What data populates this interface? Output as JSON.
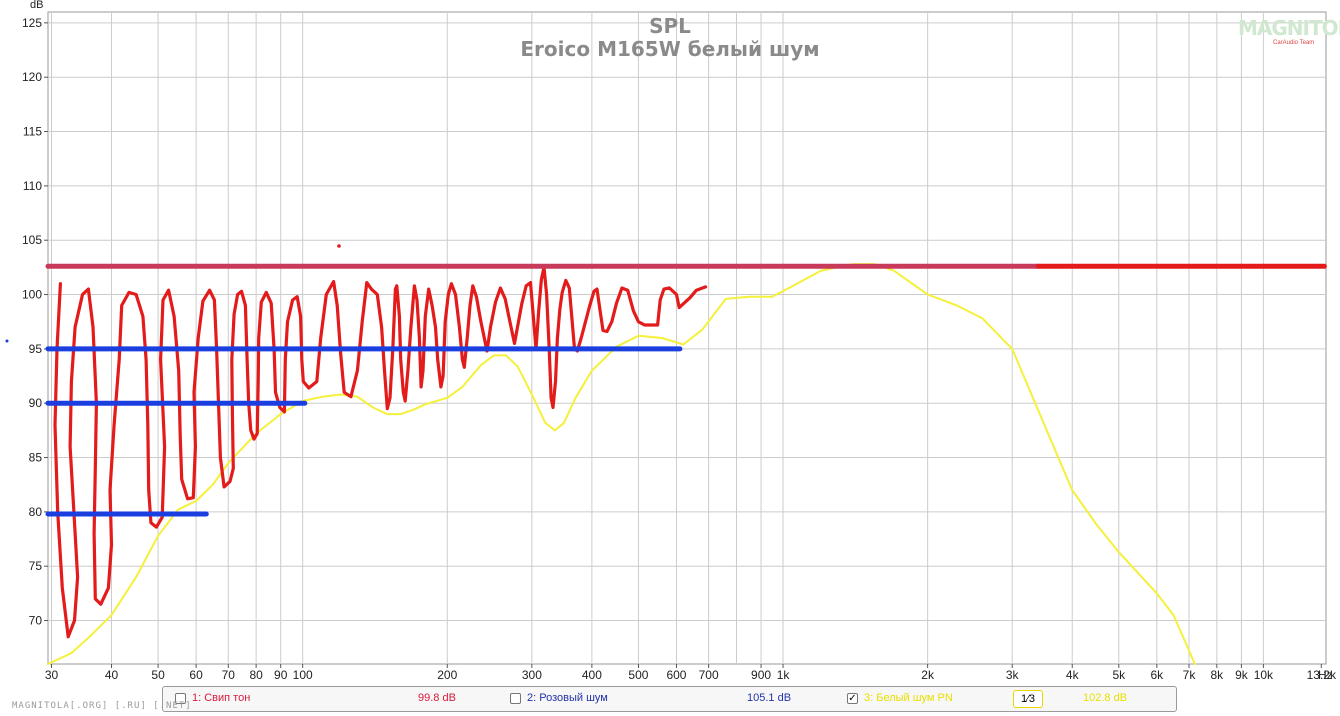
{
  "chart_data": {
    "type": "line",
    "title": "SPL",
    "subtitle": "Eroico M165W белый шум",
    "ylabel": "dB",
    "xlabel": "Hz",
    "xscale": "log",
    "xlim": [
      29.5,
      13500
    ],
    "ylim": [
      66,
      126
    ],
    "y_ticks": [
      70,
      75,
      80,
      85,
      90,
      95,
      100,
      105,
      110,
      115,
      120,
      125
    ],
    "x_ticks": [
      {
        "v": 30,
        "label": "30"
      },
      {
        "v": 40,
        "label": "40"
      },
      {
        "v": 50,
        "label": "50"
      },
      {
        "v": 60,
        "label": "60"
      },
      {
        "v": 70,
        "label": "70"
      },
      {
        "v": 80,
        "label": "80"
      },
      {
        "v": 90,
        "label": "90"
      },
      {
        "v": 100,
        "label": "100"
      },
      {
        "v": 200,
        "label": "200"
      },
      {
        "v": 300,
        "label": "300"
      },
      {
        "v": 400,
        "label": "400"
      },
      {
        "v": 500,
        "label": "500"
      },
      {
        "v": 600,
        "label": "600"
      },
      {
        "v": 700,
        "label": "700"
      },
      {
        "v": 900,
        "label": "900"
      },
      {
        "v": 1000,
        "label": "1k"
      },
      {
        "v": 2000,
        "label": "2k"
      },
      {
        "v": 3000,
        "label": "3k"
      },
      {
        "v": 4000,
        "label": "4k"
      },
      {
        "v": 5000,
        "label": "5k"
      },
      {
        "v": 6000,
        "label": "6k"
      },
      {
        "v": 7000,
        "label": "7k"
      },
      {
        "v": 8000,
        "label": "8k"
      },
      {
        "v": 9000,
        "label": "9k"
      },
      {
        "v": 10000,
        "label": "10k"
      },
      {
        "v": 13200,
        "label": "13.2k"
      }
    ],
    "grid_x": [
      30,
      40,
      50,
      60,
      70,
      80,
      90,
      100,
      200,
      300,
      400,
      500,
      600,
      700,
      800,
      900,
      1000,
      2000,
      3000,
      4000,
      5000,
      6000,
      7000,
      8000,
      9000,
      10000
    ],
    "grid": true,
    "series": [
      {
        "name": "3: Белый шум PN",
        "color": "#f5f03a",
        "points": [
          [
            29.5,
            66
          ],
          [
            33,
            67
          ],
          [
            36,
            68.5
          ],
          [
            40,
            70.5
          ],
          [
            45,
            74
          ],
          [
            50,
            77.8
          ],
          [
            55,
            80.2
          ],
          [
            60,
            81
          ],
          [
            65,
            82.5
          ],
          [
            70,
            84.5
          ],
          [
            80,
            87.2
          ],
          [
            90,
            89
          ],
          [
            100,
            90.2
          ],
          [
            110,
            90.6
          ],
          [
            120,
            90.8
          ],
          [
            130,
            90.6
          ],
          [
            140,
            89.6
          ],
          [
            150,
            89
          ],
          [
            160,
            89
          ],
          [
            170,
            89.4
          ],
          [
            180,
            89.9
          ],
          [
            200,
            90.5
          ],
          [
            215,
            91.5
          ],
          [
            235,
            93.5
          ],
          [
            250,
            94.4
          ],
          [
            265,
            94.4
          ],
          [
            280,
            93.4
          ],
          [
            300,
            90.8
          ],
          [
            320,
            88.2
          ],
          [
            335,
            87.5
          ],
          [
            350,
            88.2
          ],
          [
            370,
            90.5
          ],
          [
            400,
            93
          ],
          [
            450,
            95.2
          ],
          [
            500,
            96.2
          ],
          [
            560,
            96
          ],
          [
            620,
            95.4
          ],
          [
            680,
            96.8
          ],
          [
            760,
            99.6
          ],
          [
            850,
            99.8
          ],
          [
            950,
            99.8
          ],
          [
            1050,
            100.8
          ],
          [
            1200,
            102.2
          ],
          [
            1400,
            102.8
          ],
          [
            1550,
            102.8
          ],
          [
            1700,
            102.2
          ],
          [
            2000,
            100
          ],
          [
            2300,
            99
          ],
          [
            2600,
            97.8
          ],
          [
            3000,
            95
          ],
          [
            3500,
            88
          ],
          [
            4000,
            82
          ],
          [
            4500,
            78.8
          ],
          [
            5000,
            76.3
          ],
          [
            6000,
            72.5
          ],
          [
            6500,
            70.5
          ],
          [
            7200,
            66
          ]
        ]
      },
      {
        "name": "annotation-red-trace",
        "color": "#e31b1b",
        "points": [
          [
            31.3,
            101
          ],
          [
            30.8,
            95
          ],
          [
            30.5,
            88
          ],
          [
            30.9,
            80
          ],
          [
            31.6,
            73
          ],
          [
            32.5,
            68.5
          ],
          [
            33.5,
            70
          ],
          [
            34,
            74
          ],
          [
            33.4,
            80
          ],
          [
            32.8,
            86
          ],
          [
            33,
            92
          ],
          [
            33.6,
            97
          ],
          [
            34.8,
            100
          ],
          [
            35.8,
            100.5
          ],
          [
            36.6,
            97
          ],
          [
            37.2,
            90
          ],
          [
            37,
            84
          ],
          [
            36.8,
            78
          ],
          [
            37,
            72
          ],
          [
            38,
            71.5
          ],
          [
            39.4,
            73
          ],
          [
            40,
            77
          ],
          [
            39.7,
            82
          ],
          [
            40.5,
            88
          ],
          [
            41.5,
            94
          ],
          [
            42,
            99
          ],
          [
            43.5,
            100.2
          ],
          [
            45,
            100
          ],
          [
            46.5,
            98
          ],
          [
            47.2,
            94
          ],
          [
            47.6,
            88
          ],
          [
            47.8,
            82
          ],
          [
            48.3,
            79
          ],
          [
            49.6,
            78.6
          ],
          [
            51,
            79.5
          ],
          [
            51.6,
            86
          ],
          [
            50.6,
            94
          ],
          [
            51.2,
            99.5
          ],
          [
            52.6,
            100.4
          ],
          [
            54,
            98
          ],
          [
            55.2,
            93
          ],
          [
            55.6,
            87
          ],
          [
            56,
            83
          ],
          [
            57.6,
            81.2
          ],
          [
            59.2,
            81.3
          ],
          [
            59.8,
            86
          ],
          [
            59.4,
            91
          ],
          [
            60.6,
            96
          ],
          [
            62,
            99.4
          ],
          [
            64,
            100.4
          ],
          [
            65.5,
            99.5
          ],
          [
            66.2,
            95
          ],
          [
            66.8,
            90
          ],
          [
            67.4,
            85
          ],
          [
            68.6,
            82.3
          ],
          [
            70.6,
            82.8
          ],
          [
            71.7,
            84
          ],
          [
            71.4,
            89
          ],
          [
            71.2,
            94
          ],
          [
            72,
            98.2
          ],
          [
            73.2,
            100
          ],
          [
            74.6,
            100.3
          ],
          [
            76,
            99
          ],
          [
            76.6,
            94
          ],
          [
            77.2,
            90
          ],
          [
            78,
            87.5
          ],
          [
            79.2,
            86.7
          ],
          [
            80.4,
            87.2
          ],
          [
            80.8,
            92
          ],
          [
            81,
            96
          ],
          [
            82,
            99.3
          ],
          [
            84,
            100.2
          ],
          [
            86,
            99.2
          ],
          [
            87.2,
            95
          ],
          [
            87.8,
            91
          ],
          [
            89.6,
            89.6
          ],
          [
            91.6,
            89.2
          ],
          [
            92,
            94
          ],
          [
            93,
            97.5
          ],
          [
            95.3,
            99.5
          ],
          [
            97.4,
            99.8
          ],
          [
            99,
            98
          ],
          [
            99.6,
            94
          ],
          [
            100.3,
            92
          ],
          [
            103,
            91.4
          ],
          [
            107,
            92
          ],
          [
            109,
            96
          ],
          [
            112,
            100
          ],
          [
            116,
            101.2
          ],
          [
            118,
            99
          ],
          [
            120,
            94.5
          ],
          [
            122,
            91
          ],
          [
            126,
            90.6
          ],
          [
            130,
            93
          ],
          [
            133,
            97.5
          ],
          [
            136,
            101.1
          ],
          [
            139,
            100.5
          ],
          [
            143,
            100
          ],
          [
            146,
            97
          ],
          [
            148,
            93
          ],
          [
            150,
            89.5
          ],
          [
            152,
            90.5
          ],
          [
            154,
            95
          ],
          [
            156,
            100.5
          ],
          [
            157,
            100.8
          ],
          [
            159,
            98
          ],
          [
            160,
            94
          ],
          [
            162,
            91
          ],
          [
            163.5,
            90.2
          ],
          [
            165.6,
            93
          ],
          [
            168,
            97
          ],
          [
            170.8,
            100.8
          ],
          [
            173,
            99.5
          ],
          [
            175,
            96
          ],
          [
            176.4,
            91.5
          ],
          [
            178,
            93
          ],
          [
            180,
            98
          ],
          [
            183,
            100.5
          ],
          [
            186,
            99
          ],
          [
            189,
            97
          ],
          [
            191,
            94
          ],
          [
            194,
            91.5
          ],
          [
            196,
            92.5
          ],
          [
            198,
            97.5
          ],
          [
            201,
            100
          ],
          [
            204,
            101
          ],
          [
            208,
            100
          ],
          [
            212,
            97
          ],
          [
            215,
            94
          ],
          [
            217,
            93.3
          ],
          [
            220,
            96
          ],
          [
            223,
            99
          ],
          [
            226,
            100.8
          ],
          [
            230,
            99.8
          ],
          [
            235,
            97.5
          ],
          [
            242,
            94.8
          ],
          [
            246,
            97
          ],
          [
            252,
            99.3
          ],
          [
            258,
            100.6
          ],
          [
            264,
            99.6
          ],
          [
            270,
            97.5
          ],
          [
            276,
            95.5
          ],
          [
            280,
            97
          ],
          [
            286,
            99.2
          ],
          [
            292,
            100.8
          ],
          [
            298,
            101.1
          ],
          [
            302,
            98
          ],
          [
            306,
            95
          ],
          [
            310,
            98.5
          ],
          [
            314,
            101.4
          ],
          [
            318,
            102.5
          ],
          [
            322,
            100
          ],
          [
            326,
            95
          ],
          [
            329,
            90.5
          ],
          [
            332,
            89.6
          ],
          [
            336,
            92
          ],
          [
            339,
            96
          ],
          [
            343,
            98.6
          ],
          [
            347,
            100.2
          ],
          [
            353,
            101.3
          ],
          [
            359,
            100.6
          ],
          [
            364,
            97.5
          ],
          [
            368,
            95
          ],
          [
            373,
            94.8
          ],
          [
            380,
            96
          ],
          [
            388,
            97.5
          ],
          [
            396,
            99
          ],
          [
            404,
            100.3
          ],
          [
            410,
            100.5
          ],
          [
            416,
            98.5
          ],
          [
            422,
            96.7
          ],
          [
            430,
            96.6
          ],
          [
            440,
            97.5
          ],
          [
            450,
            99.2
          ],
          [
            462,
            100.6
          ],
          [
            475,
            100.4
          ],
          [
            488,
            98.5
          ],
          [
            500,
            97.5
          ],
          [
            515,
            97.2
          ],
          [
            530,
            97.2
          ],
          [
            548,
            97.2
          ],
          [
            555,
            99.5
          ],
          [
            565,
            100.5
          ],
          [
            580,
            100.6
          ],
          [
            600,
            100
          ],
          [
            608,
            98.8
          ],
          [
            622,
            99.2
          ],
          [
            640,
            99.7
          ],
          [
            660,
            100.4
          ],
          [
            690,
            100.7
          ]
        ]
      },
      {
        "name": "annotation-pink-line",
        "color": "#c83a5a",
        "points": [
          [
            29.5,
            102.6
          ],
          [
            3400,
            102.6
          ]
        ]
      },
      {
        "name": "annotation-red-line",
        "color": "#e31b1b",
        "points": [
          [
            3400,
            102.6
          ],
          [
            13400,
            102.6
          ]
        ]
      },
      {
        "name": "annotation-blue-95",
        "color": "#1a3ee0",
        "points": [
          [
            29.5,
            95
          ],
          [
            610,
            95
          ]
        ]
      },
      {
        "name": "annotation-blue-90",
        "color": "#1a3ee0",
        "points": [
          [
            29.5,
            90
          ],
          [
            101,
            90
          ]
        ]
      },
      {
        "name": "annotation-blue-80",
        "color": "#1a3ee0",
        "points": [
          [
            29.5,
            79.8
          ],
          [
            63,
            79.8
          ]
        ]
      }
    ],
    "legend": {
      "placement": "bottom",
      "items": [
        {
          "label": "1: Свип тон",
          "value": "99.8 dB",
          "checked": false,
          "color": "#d81b3c"
        },
        {
          "label": "2: Розовый шум",
          "value": "105.1 dB",
          "checked": false,
          "color": "#2233aa"
        },
        {
          "label": "3: Белый шум PN",
          "value": "102.8 dB",
          "checked": true,
          "color": "#e8e000",
          "smoothing": "1⁄3"
        }
      ]
    }
  },
  "footer": "MAGNITOLA[.ORG] [.RU] [.NET]",
  "logo_text": "MAGNITOLA",
  "logo_sub": "CarAudio Team"
}
